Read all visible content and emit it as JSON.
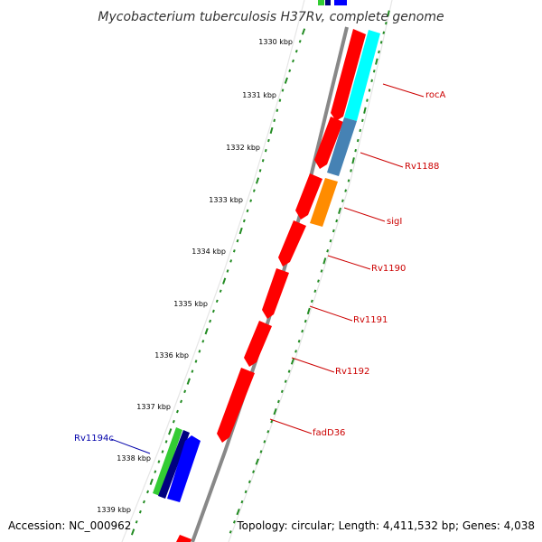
{
  "title": "Mycobacterium tuberculosis H37Rv, complete genome",
  "footer": {
    "accession": "Accession: NC_000962",
    "topology": "Topology: circular; Length: 4,411,532 bp; Genes: 4,038"
  },
  "ticks": [
    "1330 kbp",
    "1331 kbp",
    "1332 kbp",
    "1333 kbp",
    "1334 kbp",
    "1335 kbp",
    "1336 kbp",
    "1337 kbp",
    "1338 kbp",
    "1339 kbp"
  ],
  "genes": [
    {
      "label": "rocA",
      "color": "#cc0000"
    },
    {
      "label": "Rv1188",
      "color": "#cc0000"
    },
    {
      "label": "sigI",
      "color": "#cc0000"
    },
    {
      "label": "Rv1190",
      "color": "#cc0000"
    },
    {
      "label": "Rv1191",
      "color": "#cc0000"
    },
    {
      "label": "Rv1192",
      "color": "#cc0000"
    },
    {
      "label": "fadD36",
      "color": "#cc0000"
    },
    {
      "label": "Rv1194c",
      "color": "#0000aa"
    }
  ],
  "colors": {
    "forward_cds": "#ff0000",
    "reverse_cds": "#0000ff",
    "backbone": "#888888",
    "tick_marks": "#228b22",
    "cyan_feature": "#00ffff",
    "steelblue_feature": "#4682b4",
    "orange_feature": "#ff8c00",
    "green_feature": "#33cc33",
    "navy_feature": "#000080"
  }
}
